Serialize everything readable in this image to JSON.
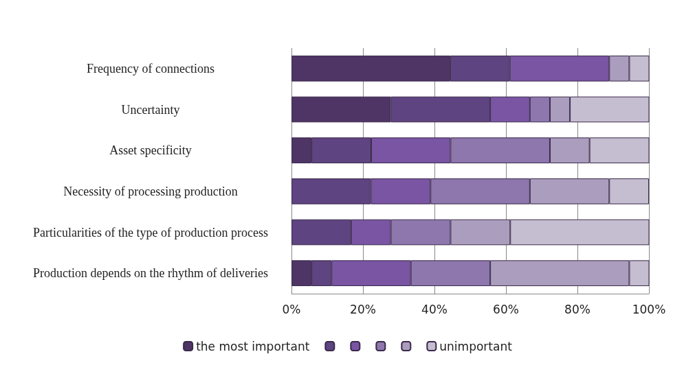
{
  "chart_data": {
    "type": "bar",
    "orientation": "horizontal",
    "stacked": true,
    "categories": [
      "Frequency of connections",
      "Uncertainty",
      "Asset specificity",
      "Necessity of processing production",
      "Particularities of the type of production process",
      "Production depends on the rhythm of deliveries"
    ],
    "series": [
      {
        "name": "the most important",
        "color": "#4e3566",
        "values": [
          44.4,
          27.8,
          5.6,
          0,
          0,
          5.6
        ]
      },
      {
        "color": "#5e4480",
        "values": [
          16.7,
          27.8,
          16.7,
          22.2,
          16.7,
          5.6
        ]
      },
      {
        "color": "#7a55a3",
        "values": [
          27.8,
          11.1,
          22.2,
          16.7,
          11.1,
          22.2
        ]
      },
      {
        "color": "#8d77ad",
        "values": [
          0,
          5.6,
          27.8,
          27.8,
          16.7,
          22.2
        ]
      },
      {
        "color": "#ab9dbd",
        "values": [
          5.6,
          5.6,
          11.1,
          22.2,
          16.7,
          38.9
        ]
      },
      {
        "name": "unimportant",
        "color": "#c5bdd0",
        "values": [
          5.6,
          22.2,
          16.7,
          11.1,
          38.9,
          5.6
        ]
      }
    ],
    "xlim": [
      0,
      100
    ],
    "xticks": [
      {
        "value": 0,
        "label": "0%"
      },
      {
        "value": 20,
        "label": "20%"
      },
      {
        "value": 40,
        "label": "40%"
      },
      {
        "value": 60,
        "label": "60%"
      },
      {
        "value": 80,
        "label": "80%"
      },
      {
        "value": 100,
        "label": "100%"
      }
    ],
    "grid": "x",
    "legend": "bottom"
  }
}
